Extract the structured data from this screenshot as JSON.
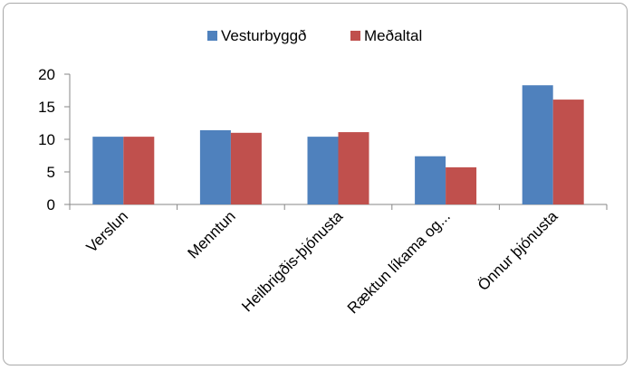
{
  "chart_data": {
    "type": "bar",
    "categories": [
      "Verslun",
      "Menntun",
      "Heilbrigðis-þjónusta",
      "Ræktun líkama og...",
      "Önnur þjónusta"
    ],
    "series": [
      {
        "name": "Vesturbyggð",
        "color": "#4f81bd",
        "values": [
          10.4,
          11.4,
          10.4,
          7.4,
          18.3
        ]
      },
      {
        "name": "Meðaltal",
        "color": "#c0504d",
        "values": [
          10.4,
          11.0,
          11.1,
          5.7,
          16.1
        ]
      }
    ],
    "ylim": [
      0,
      20
    ],
    "yticks": [
      0,
      5,
      10,
      15,
      20
    ],
    "ytick_labels": [
      "0",
      "5",
      "10",
      "15",
      "20"
    ],
    "grid": false,
    "legend": "top"
  }
}
